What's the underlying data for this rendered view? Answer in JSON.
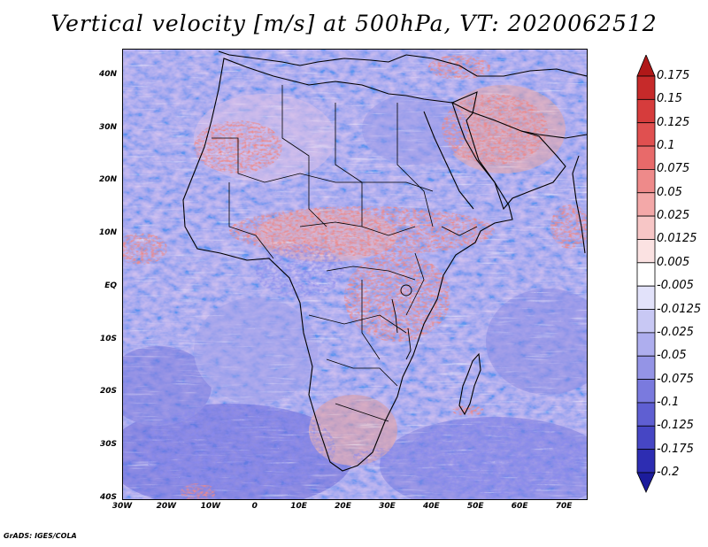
{
  "title": "Vertical velocity [m/s] at 500hPa, VT: 2020062512",
  "footer": "GrADS: IGES/COLA",
  "map": {
    "lon_range": [
      -30,
      75
    ],
    "lat_range": [
      -40,
      45
    ],
    "y_ticks": [
      {
        "label": "40N"
      },
      {
        "label": "30N"
      },
      {
        "label": "20N"
      },
      {
        "label": "10N"
      },
      {
        "label": "EQ"
      },
      {
        "label": "10S"
      },
      {
        "label": "20S"
      },
      {
        "label": "30S"
      },
      {
        "label": "40S"
      }
    ],
    "x_ticks": [
      {
        "label": "30W"
      },
      {
        "label": "20W"
      },
      {
        "label": "10W"
      },
      {
        "label": "0"
      },
      {
        "label": "10E"
      },
      {
        "label": "20E"
      },
      {
        "label": "30E"
      },
      {
        "label": "40E"
      },
      {
        "label": "50E"
      },
      {
        "label": "60E"
      },
      {
        "label": "70E"
      }
    ]
  },
  "colorbar": {
    "labels": [
      "0.175",
      "0.15",
      "0.125",
      "0.1",
      "0.075",
      "0.05",
      "0.025",
      "0.0125",
      "0.005",
      "-0.005",
      "-0.0125",
      "-0.025",
      "-0.05",
      "-0.075",
      "-0.1",
      "-0.125",
      "-0.175",
      "-0.2"
    ],
    "colors": [
      "#b01818",
      "#c62a2a",
      "#d63c3c",
      "#e05050",
      "#e86a6a",
      "#ee8a8a",
      "#f3a8a8",
      "#f7c6c6",
      "#fbe2e2",
      "#ffffff",
      "#e2e2fa",
      "#c8c8f4",
      "#aeaeee",
      "#9494e6",
      "#7a7ade",
      "#5f5fd2",
      "#4646c4",
      "#2d2db2",
      "#1c1c9c"
    ]
  }
}
